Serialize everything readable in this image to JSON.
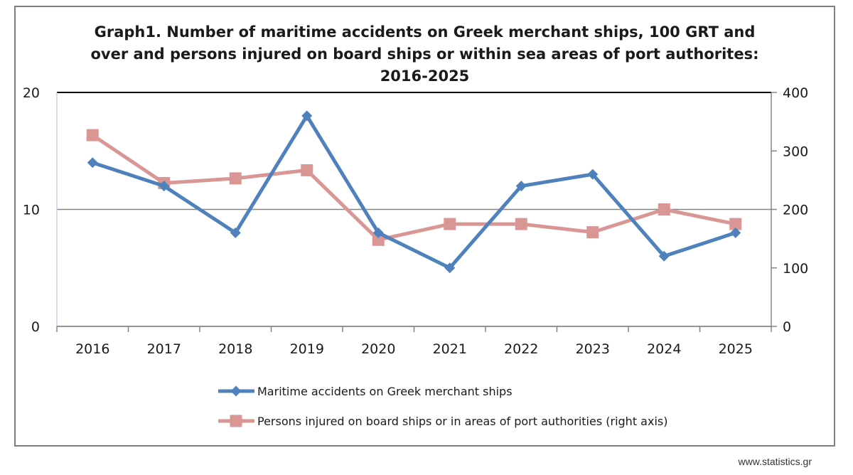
{
  "chart_data": {
    "type": "line",
    "title_lines": [
      "Graph1. Number of maritime accidents on Greek merchant ships, 100 GRT and",
      "over and persons injured on board ships or within sea areas of port authorites:",
      "2016-2025"
    ],
    "x": [
      "2016",
      "2017",
      "2018",
      "2019",
      "2020",
      "2021",
      "2022",
      "2023",
      "2024",
      "2025"
    ],
    "y_left": {
      "ylim": [
        0,
        20
      ],
      "ticks": [
        "0",
        "10",
        "20"
      ]
    },
    "y_right": {
      "ylim": [
        0,
        400
      ],
      "ticks": [
        "0",
        "100",
        "200",
        "300",
        "400"
      ]
    },
    "series": [
      {
        "name": "Maritime accidents on Greek merchant ships",
        "axis": "left",
        "color": "#4f81bd",
        "marker": "diamond",
        "values": [
          14,
          12,
          8,
          18,
          8,
          5,
          12,
          13,
          6,
          8
        ]
      },
      {
        "name": "Persons injured on board ships or in areas of port authorities (right axis)",
        "axis": "right",
        "color": "#d99694",
        "marker": "square",
        "values": [
          327,
          245,
          253,
          267,
          148,
          175,
          175,
          161,
          200,
          175
        ]
      }
    ],
    "grid": true,
    "legend_position": "bottom"
  },
  "source": "www.statistics.gr"
}
